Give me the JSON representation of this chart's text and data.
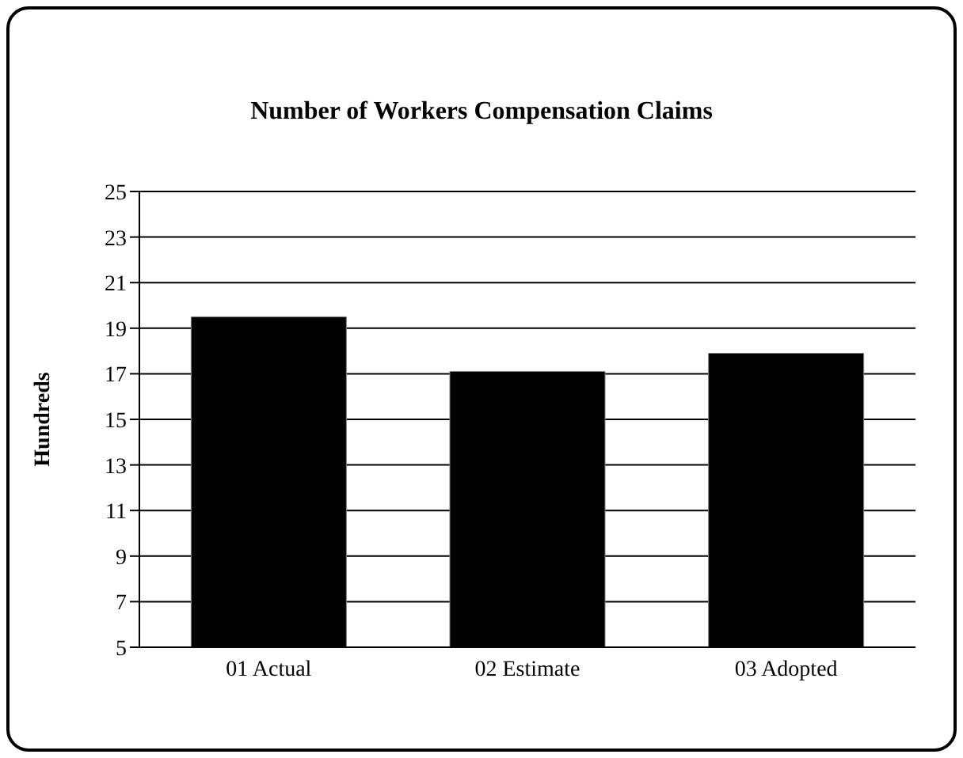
{
  "chart_data": {
    "type": "bar",
    "title": "Number of Workers Compensation Claims",
    "ylabel": "Hundreds",
    "categories": [
      "01 Actual",
      "02 Estimate",
      "03 Adopted"
    ],
    "values": [
      19.5,
      17.1,
      17.9
    ],
    "color": "#000000",
    "ylim": [
      5,
      25
    ],
    "yticks": [
      5,
      7,
      9,
      11,
      13,
      15,
      17,
      19,
      21,
      23,
      25
    ],
    "grid": "y",
    "legend": false
  }
}
